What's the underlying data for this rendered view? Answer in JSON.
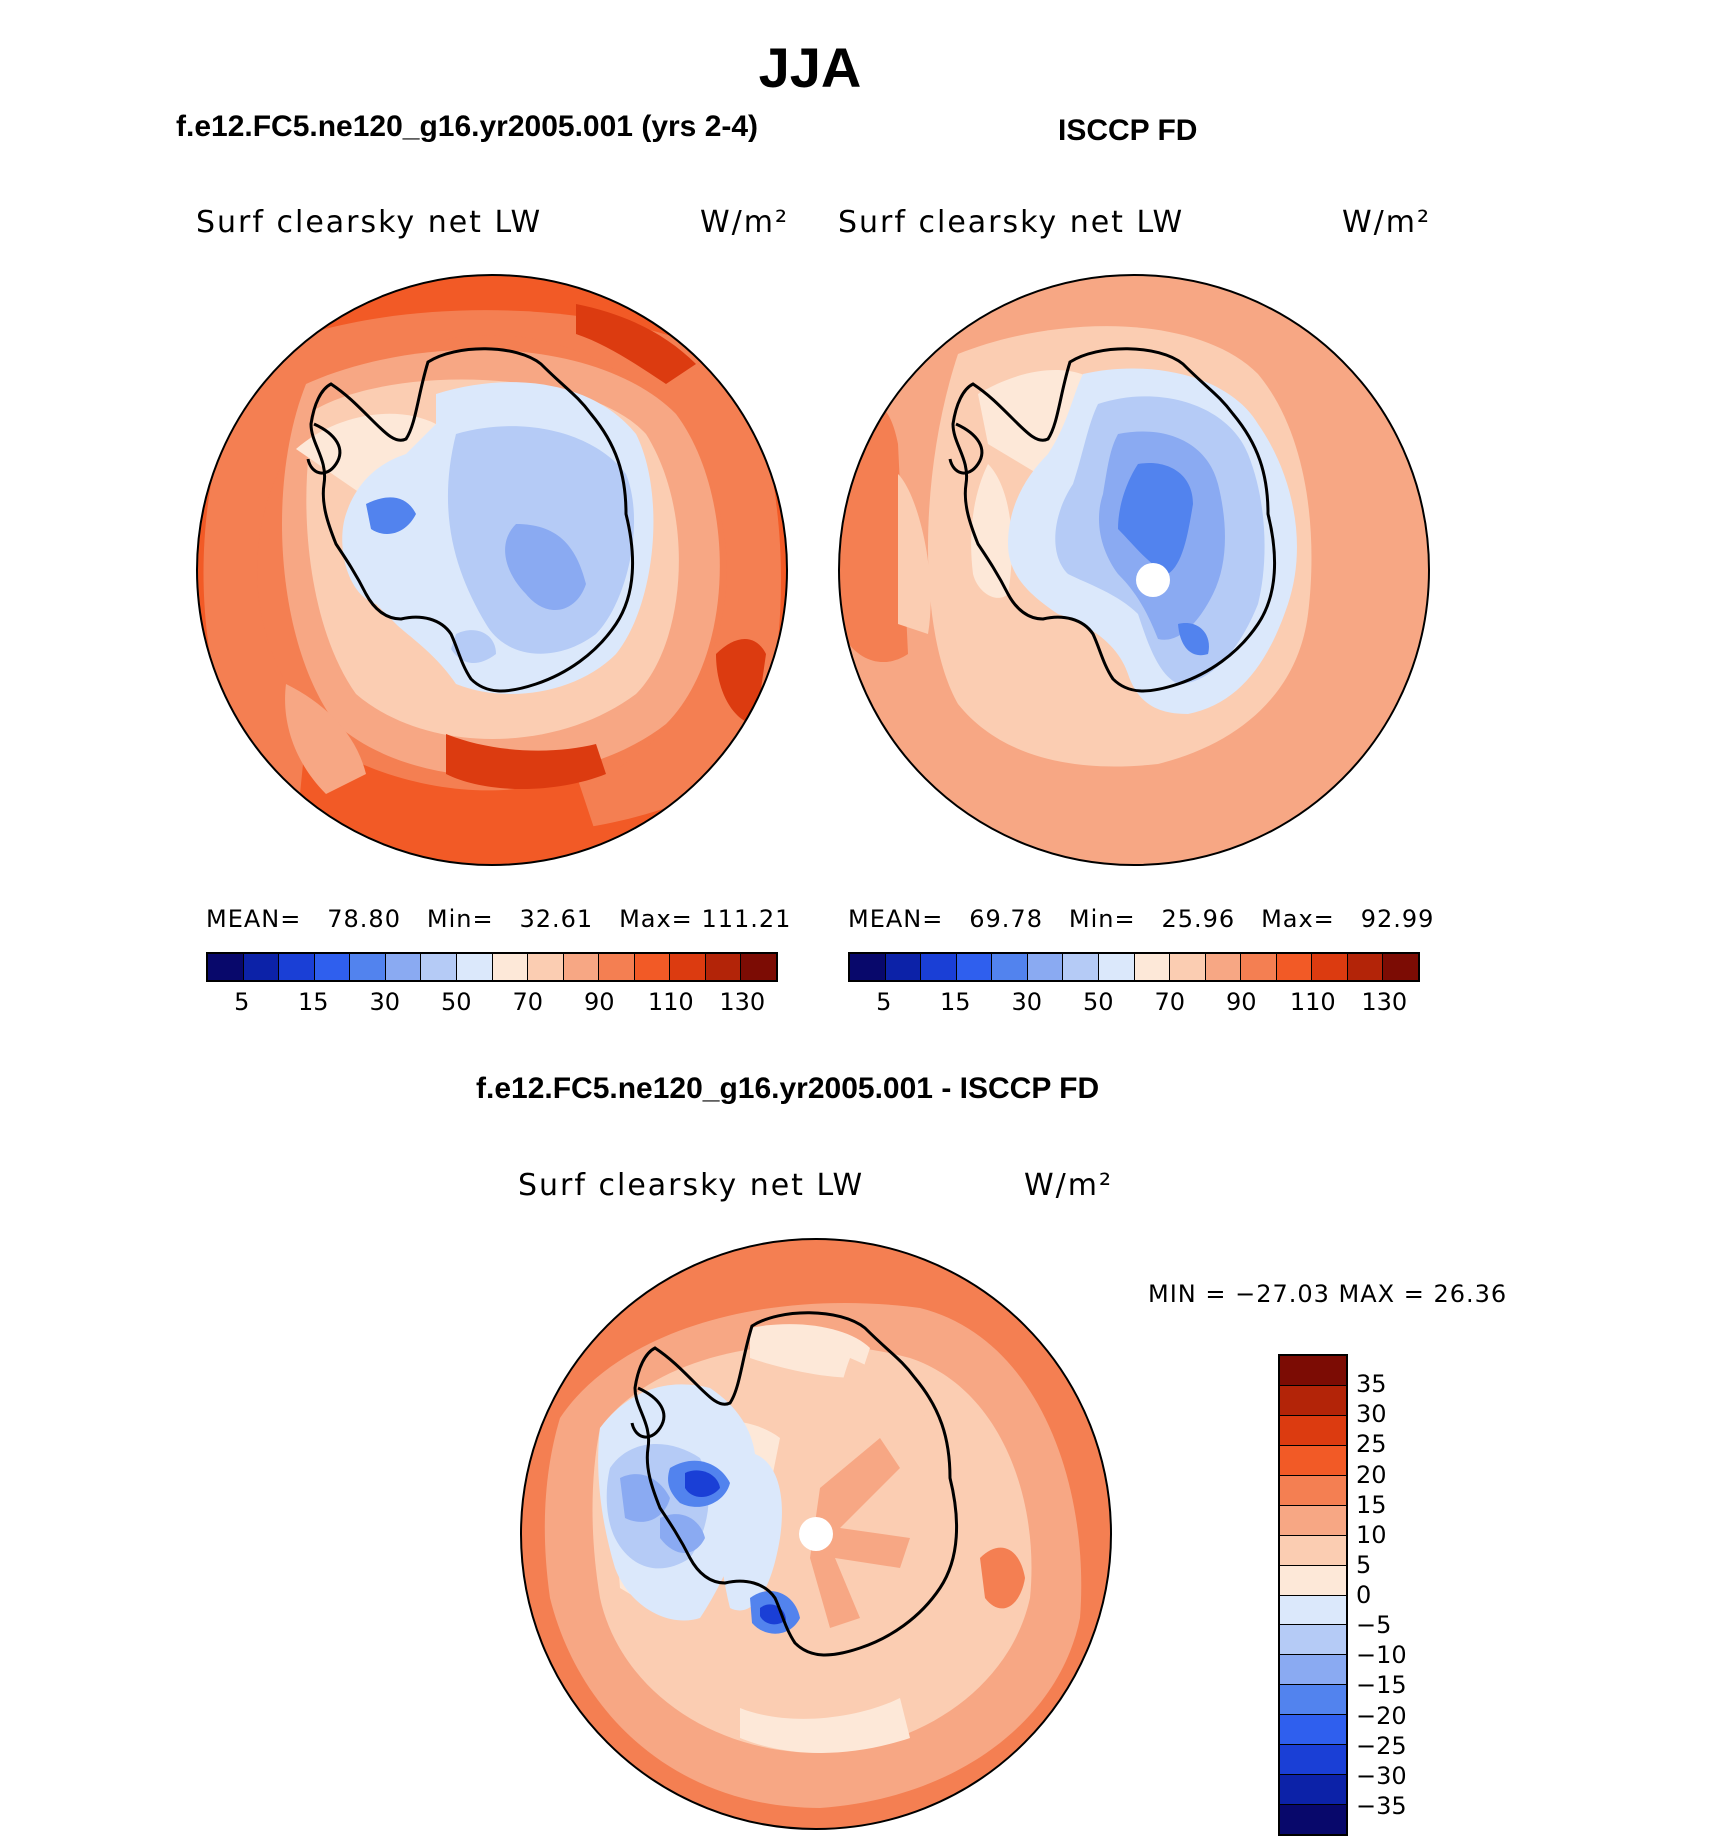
{
  "title": "JJA",
  "panels": [
    {
      "subtitle": "f.e12.FC5.ne120_g16.yr2005.001 (yrs 2-4)",
      "variable_label": "Surf clearsky net LW",
      "units": "W/m²",
      "stats": {
        "mean_label": "MEAN=",
        "mean": "78.80",
        "min_label": "Min=",
        "min": "32.61",
        "max_label": "Max=",
        "max": "111.21"
      },
      "colorbar_ticks": [
        "5",
        "15",
        "30",
        "50",
        "70",
        "90",
        "110",
        "130"
      ]
    },
    {
      "subtitle": "ISCCP FD",
      "variable_label": "Surf clearsky net LW",
      "units": "W/m²",
      "stats": {
        "mean_label": "MEAN=",
        "mean": "69.78",
        "min_label": "Min=",
        "min": "25.96",
        "max_label": "Max=",
        "max": "92.99"
      },
      "colorbar_ticks": [
        "5",
        "15",
        "30",
        "50",
        "70",
        "90",
        "110",
        "130"
      ]
    }
  ],
  "difference": {
    "subtitle": "f.e12.FC5.ne120_g16.yr2005.001 - ISCCP FD",
    "variable_label": "Surf clearsky net LW",
    "units": "W/m²",
    "minmax_text": "MIN = −27.03 MAX =   26.36",
    "colorbar_ticks": [
      "35",
      "30",
      "25",
      "20",
      "15",
      "10",
      "5",
      "0",
      "−5",
      "−10",
      "−15",
      "−20",
      "−25",
      "−30",
      "−35"
    ]
  },
  "colors": {
    "abs_palette": [
      "#08086b",
      "#0c22a8",
      "#1a3fd6",
      "#2f5fee",
      "#5283ee",
      "#8aaaf2",
      "#b5cbf6",
      "#dbe8fb",
      "#fde8d8",
      "#fbcdb2",
      "#f7a784",
      "#f47f52",
      "#f25a26",
      "#dc3b10",
      "#b32408",
      "#7c0c04"
    ],
    "diff_palette": [
      "#7c0c04",
      "#b32408",
      "#dc3b10",
      "#f25a26",
      "#f47f52",
      "#f7a784",
      "#fbcdb2",
      "#fde8d8",
      "#dbe8fb",
      "#b5cbf6",
      "#8aaaf2",
      "#5283ee",
      "#2f5fee",
      "#1a3fd6",
      "#0c22a8",
      "#08086b"
    ]
  }
}
